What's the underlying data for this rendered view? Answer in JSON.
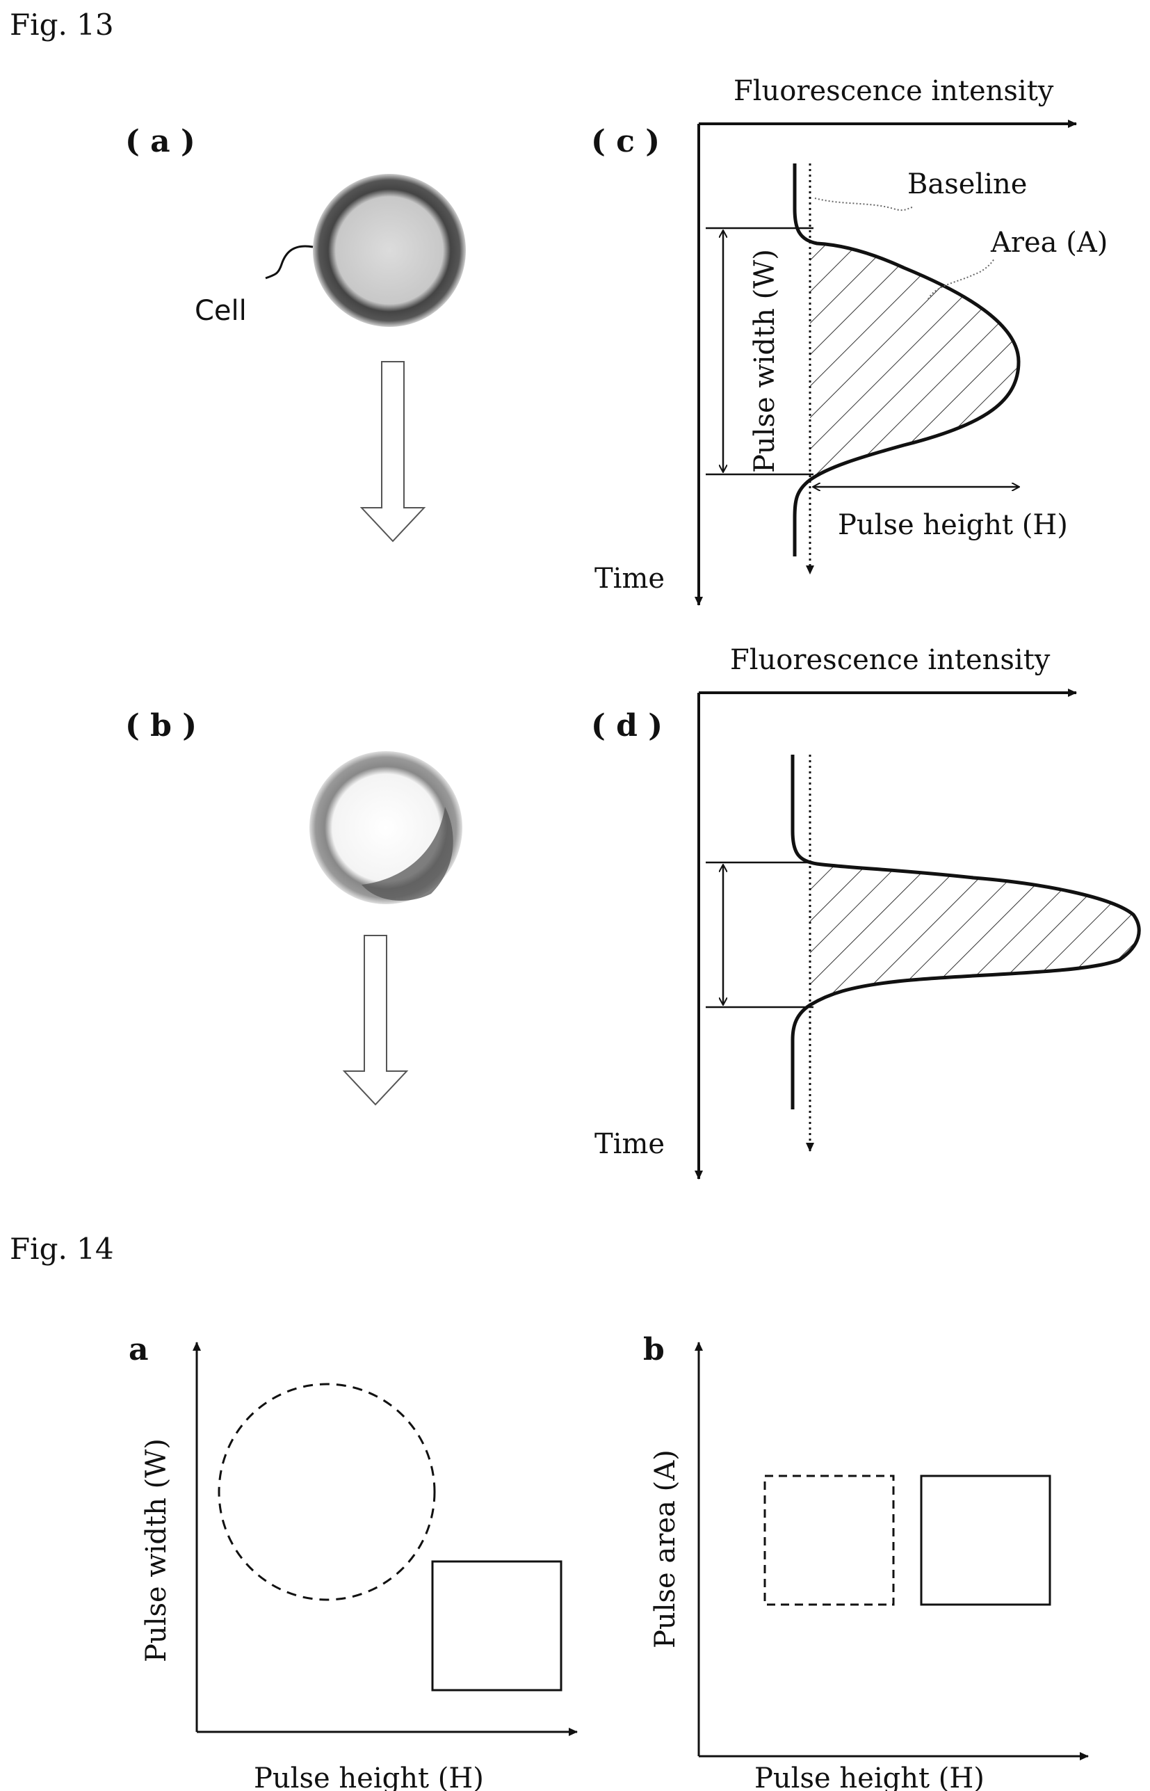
{
  "fig13": {
    "title": "Fig. 13",
    "panel_a": "( a )",
    "panel_b": "( b )",
    "panel_c": "( c )",
    "panel_d": "( d )",
    "cell_label": "Cell",
    "c_axis_x": "Fluorescence intensity",
    "c_axis_y": "Time",
    "c_baseline": "Baseline",
    "c_area": "Area (A)",
    "c_width": "Pulse width (W)",
    "c_height": "Pulse height (H)",
    "d_axis_x": "Fluorescence intensity",
    "d_axis_y": "Time"
  },
  "fig14": {
    "title": "Fig. 14",
    "panel_a": "a",
    "panel_b": "b",
    "a_ylabel": "Pulse width (W)",
    "a_xlabel": "Pulse height (H)",
    "b_ylabel": "Pulse area (A)",
    "b_xlabel": "Pulse height (H)"
  }
}
